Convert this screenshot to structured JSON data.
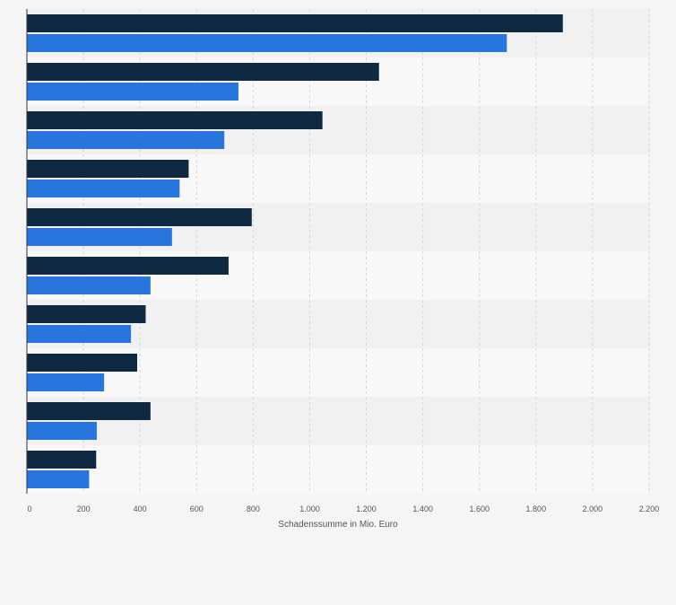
{
  "chart_data": {
    "type": "bar",
    "orientation": "horizontal",
    "categories": [
      "",
      "",
      "",
      "",
      "",
      "",
      "",
      "",
      "",
      ""
    ],
    "series": [
      {
        "values": [
          1895,
          1245,
          1045,
          572,
          795,
          713,
          420,
          390,
          437,
          245
        ],
        "color": "#0f2942"
      },
      {
        "values": [
          1697,
          748,
          698,
          540,
          513,
          437,
          368,
          273,
          247,
          220
        ],
        "color": "#2876dd"
      }
    ],
    "title": "",
    "xlabel": "Schadenssumme in Mio. Euro",
    "ylabel": "",
    "xlim": [
      0,
      2200
    ],
    "xticks": [
      0,
      200,
      400,
      600,
      800,
      1000,
      1200,
      1400,
      1600,
      1800,
      2000,
      2200
    ],
    "xtick_labels": [
      "0",
      "200",
      "400",
      "600",
      "800",
      "1.000",
      "1.200",
      "1.400",
      "1.600",
      "1.800",
      "2.000",
      "2.200"
    ],
    "grid": "vertical dashed",
    "legend": "none",
    "colors": {
      "page_background": "#f5f5f5",
      "band_dark": "#f1f1f1",
      "band_light": "#f8f8f8",
      "grid": "#d4d4d4",
      "axis": "#333333",
      "tick_label": "#555555"
    }
  }
}
